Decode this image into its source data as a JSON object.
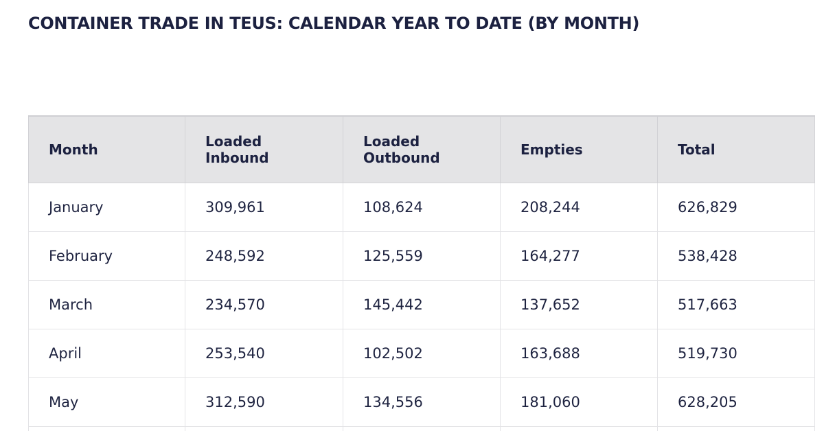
{
  "page": {
    "title": "CONTAINER TRADE IN TEUS: CALENDAR YEAR TO DATE (BY MONTH)"
  },
  "table": {
    "headers": {
      "month": "Month",
      "loaded_inbound": [
        "Loaded",
        "Inbound"
      ],
      "loaded_outbound": [
        "Loaded",
        "Outbound"
      ],
      "empties": "Empties",
      "total": "Total"
    },
    "rows": [
      {
        "month": "January",
        "loaded_inbound": "309,961",
        "loaded_outbound": "108,624",
        "empties": "208,244",
        "total": "626,829"
      },
      {
        "month": "February",
        "loaded_inbound": "248,592",
        "loaded_outbound": "125,559",
        "empties": "164,277",
        "total": "538,428"
      },
      {
        "month": "March",
        "loaded_inbound": "234,570",
        "loaded_outbound": "145,442",
        "empties": "137,652",
        "total": "517,663"
      },
      {
        "month": "April",
        "loaded_inbound": "253,540",
        "loaded_outbound": "102,502",
        "empties": "163,688",
        "total": "519,730"
      },
      {
        "month": "May",
        "loaded_inbound": "312,590",
        "loaded_outbound": "134,556",
        "empties": "181,060",
        "total": "628,205"
      }
    ]
  }
}
